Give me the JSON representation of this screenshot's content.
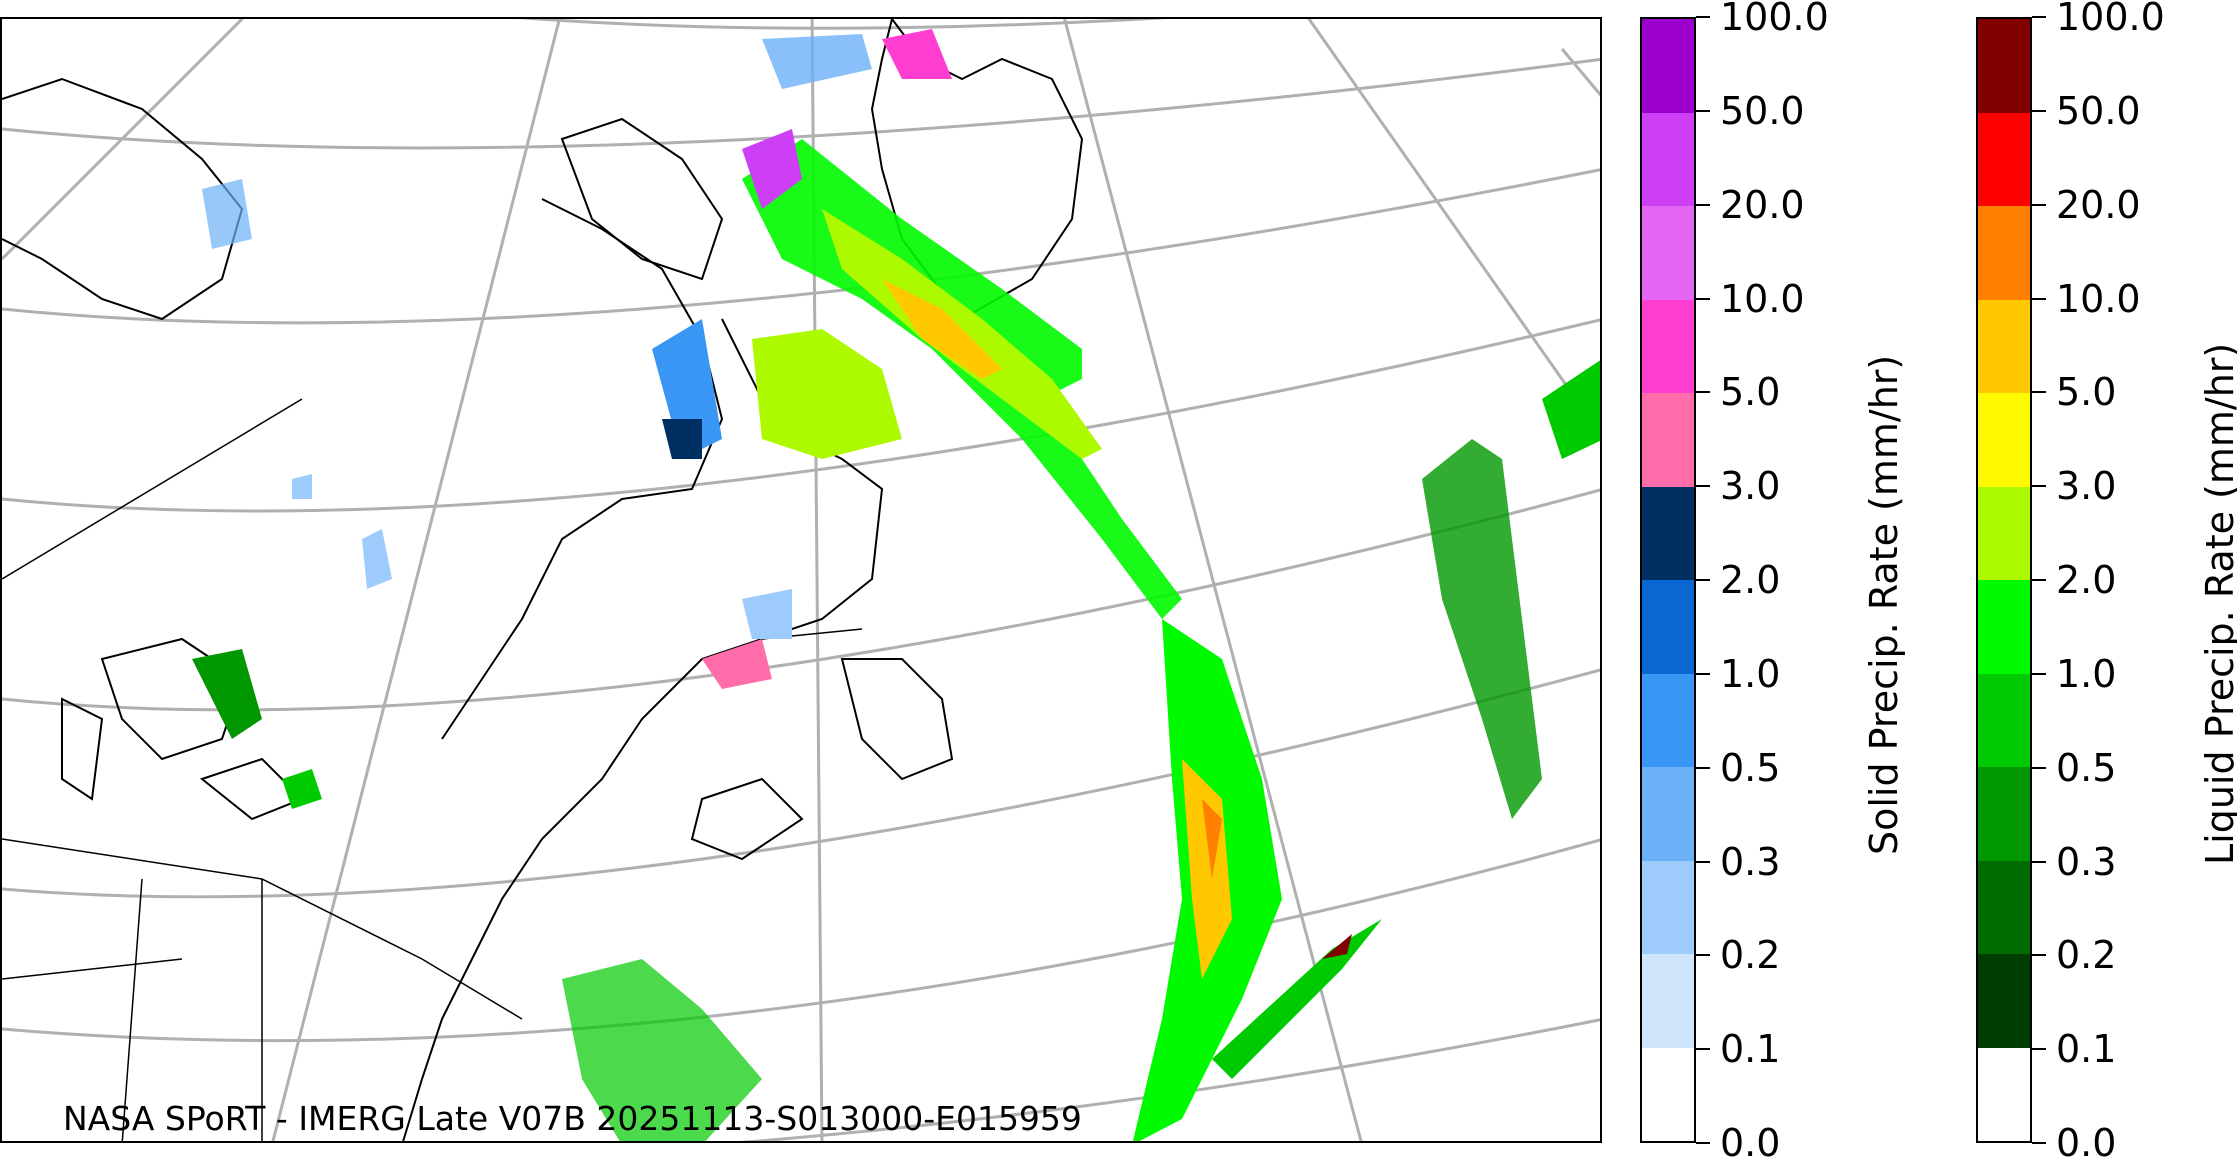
{
  "credit": "NASA SPoRT - IMERG Late V07B 20251113-S013000-E015959",
  "colorbars": [
    {
      "id": "solid",
      "title": "Solid Precip. Rate (mm/hr)",
      "tick_labels": [
        "0.0",
        "0.1",
        "0.2",
        "0.3",
        "0.5",
        "1.0",
        "2.0",
        "3.0",
        "5.0",
        "10.0",
        "20.0",
        "50.0",
        "100.0"
      ],
      "colors": [
        "#ffffff",
        "#cfe5fc",
        "#9dcbfb",
        "#6cb0f8",
        "#3a96f5",
        "#0a67d2",
        "#002f62",
        "#ff6eaa",
        "#ff3dd0",
        "#e366f5",
        "#cd3ff5",
        "#9b00cc"
      ]
    },
    {
      "id": "liquid",
      "title": "Liquid Precip. Rate (mm/hr)",
      "tick_labels": [
        "0.0",
        "0.1",
        "0.2",
        "0.3",
        "0.5",
        "1.0",
        "2.0",
        "3.0",
        "5.0",
        "10.0",
        "20.0",
        "50.0",
        "100.0"
      ],
      "colors": [
        "#ffffff",
        "#003d00",
        "#006b00",
        "#009700",
        "#00cb00",
        "#00fa00",
        "#adfa00",
        "#fffa00",
        "#ffc800",
        "#ff7f00",
        "#ff0000",
        "#800000",
        "#3f0000"
      ]
    }
  ],
  "map": {
    "region": "Eastern North America and North Atlantic",
    "gridline_color": "#b0b0b0",
    "coastline_color": "#000000"
  }
}
